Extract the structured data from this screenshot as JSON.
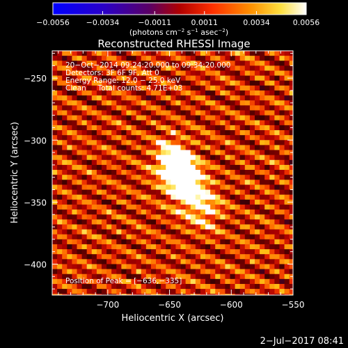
{
  "chart_data": {
    "type": "heatmap",
    "title": "Reconstructed RHESSI Image",
    "xlabel": "Heliocentric X (arcsec)",
    "ylabel": "Heliocentric Y (arcsec)",
    "xlim": [
      -745,
      -550
    ],
    "ylim": [
      -425,
      -228
    ],
    "x_ticks": [
      -700,
      -650,
      -600,
      -550
    ],
    "x_tick_labels": [
      "−700",
      "−650",
      "−600",
      "−550"
    ],
    "y_ticks": [
      -250,
      -300,
      -350,
      -400
    ],
    "y_tick_labels": [
      "−250",
      "−300",
      "−350",
      "−400"
    ],
    "colorbar": {
      "range": [
        -0.0056,
        0.0056
      ],
      "ticks": [
        -0.0056,
        -0.0034,
        -0.0011,
        0.0011,
        0.0034,
        0.0056
      ],
      "tick_labels": [
        "−0.0056",
        "−0.0034",
        "−0.0011",
        "0.0011",
        "0.0034",
        "0.0056"
      ],
      "unit_label_parts": [
        "(photons cm",
        "−2",
        " s",
        "−1",
        " asec",
        "−2",
        ")"
      ]
    },
    "annotations": [
      "20−Oct−2014 09:24:20.000 to 09:34:20.000",
      "Detectors: 3F 6F 9F, Att 0",
      "Energy Range: 12.0 − 25.0 keV",
      "Clean     Total counts: 4.71E+03"
    ],
    "peak_label": "Position of Peak = [−636,−335]",
    "peak": [
      -636,
      -335
    ],
    "sources": [
      {
        "x": -647,
        "y": -318,
        "intensity": 0.0056
      },
      {
        "x": -637,
        "y": -335,
        "intensity": 0.0056
      },
      {
        "x": -622,
        "y": -354,
        "intensity": 0.003
      }
    ],
    "background_level": 0.0025,
    "fringe_amplitude": 0.0018
  },
  "footer_date": "2−Jul−2017 08:41"
}
